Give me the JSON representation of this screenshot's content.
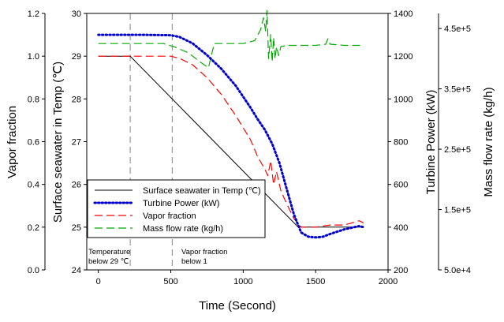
{
  "chart_data": {
    "type": "line",
    "xlabel": "Time (Second)",
    "xlim": [
      -80,
      2000
    ],
    "x_ticks": [
      "0",
      "500",
      "1000",
      "1500",
      "2000"
    ],
    "axes": {
      "vapor": {
        "label": "Vapor fraction",
        "lim": [
          0.0,
          1.2
        ],
        "ticks": [
          "0.0",
          "0.2",
          "0.4",
          "0.6",
          "0.8",
          "1.0",
          "1.2"
        ]
      },
      "temp": {
        "label": "Surface seawater in Temp (℃)",
        "lim": [
          24,
          30
        ],
        "ticks": [
          "24",
          "25",
          "26",
          "27",
          "28",
          "29",
          "30"
        ]
      },
      "power": {
        "label": "Turbine Power (kW)",
        "lim": [
          200,
          1400
        ],
        "ticks": [
          "200",
          "400",
          "600",
          "800",
          "1000",
          "1200",
          "1400"
        ]
      },
      "mass": {
        "label": "Mass flow rate (kg/h)",
        "lim": [
          50000,
          475000
        ],
        "ticks": [
          "5.0e+4",
          "1.5e+5",
          "2.5e+5",
          "3.5e+5",
          "4.5e+5"
        ]
      }
    },
    "series": [
      {
        "name": "Surface seawater in Temp (℃)",
        "axis": "temp",
        "color": "#000000",
        "style": "solid",
        "x": [
          0,
          220,
          1380,
          1500,
          1830
        ],
        "y": [
          29.0,
          29.0,
          25.0,
          25.0,
          25.0
        ]
      },
      {
        "name": "Turbine Power (kW)",
        "axis": "power",
        "color": "#0000cc",
        "style": "dotted",
        "x": [
          0,
          300,
          500,
          560,
          650,
          750,
          850,
          950,
          1050,
          1100,
          1150,
          1200,
          1250,
          1300,
          1350,
          1400,
          1450,
          1500,
          1550,
          1600,
          1700,
          1800,
          1830
        ],
        "y": [
          1300,
          1300,
          1298,
          1290,
          1260,
          1205,
          1140,
          1060,
          960,
          905,
          855,
          790,
          700,
          580,
          460,
          375,
          355,
          352,
          355,
          368,
          390,
          405,
          400
        ]
      },
      {
        "name": "Vapor fraction",
        "axis": "vapor",
        "color": "#ff0000",
        "style": "dashed",
        "x": [
          0,
          500,
          560,
          650,
          750,
          850,
          950,
          1050,
          1100,
          1150,
          1170,
          1190,
          1210,
          1230,
          1260,
          1300,
          1350,
          1400,
          1450,
          1500,
          1600,
          1700,
          1750,
          1800,
          1830
        ],
        "y": [
          1.0,
          1.0,
          0.99,
          0.96,
          0.9,
          0.82,
          0.72,
          0.61,
          0.53,
          0.47,
          0.44,
          0.51,
          0.4,
          0.46,
          0.37,
          0.31,
          0.24,
          0.2,
          0.2,
          0.2,
          0.21,
          0.21,
          0.22,
          0.23,
          0.22
        ]
      },
      {
        "name": "Mass flow rate (kg/h)",
        "axis": "mass",
        "color": "#00aa00",
        "style": "dashed",
        "x": [
          0,
          450,
          520,
          620,
          700,
          760,
          800,
          900,
          1000,
          1080,
          1120,
          1140,
          1155,
          1165,
          1175,
          1190,
          1200,
          1210,
          1220,
          1230,
          1245,
          1260,
          1300,
          1400,
          1500,
          1570,
          1585,
          1600,
          1700,
          1830
        ],
        "y": [
          425000,
          425000,
          420000,
          410000,
          395000,
          385000,
          425000,
          425000,
          425000,
          430000,
          448000,
          468000,
          445000,
          480000,
          400000,
          440000,
          395000,
          435000,
          400000,
          420000,
          405000,
          420000,
          422000,
          422000,
          422000,
          424000,
          433000,
          424000,
          422000,
          422000
        ]
      }
    ],
    "legend_position": "lower-left",
    "vlines": [
      {
        "x": 220,
        "label": "Temperature below 29 ℃"
      },
      {
        "x": 510,
        "label": "Vapor fraction below 1"
      }
    ]
  },
  "annotations": {
    "annot1_line1": "Temperature",
    "annot1_line2": "below 29 ℃",
    "annot2_line1": "Vapor fraction",
    "annot2_line2": "below 1"
  }
}
